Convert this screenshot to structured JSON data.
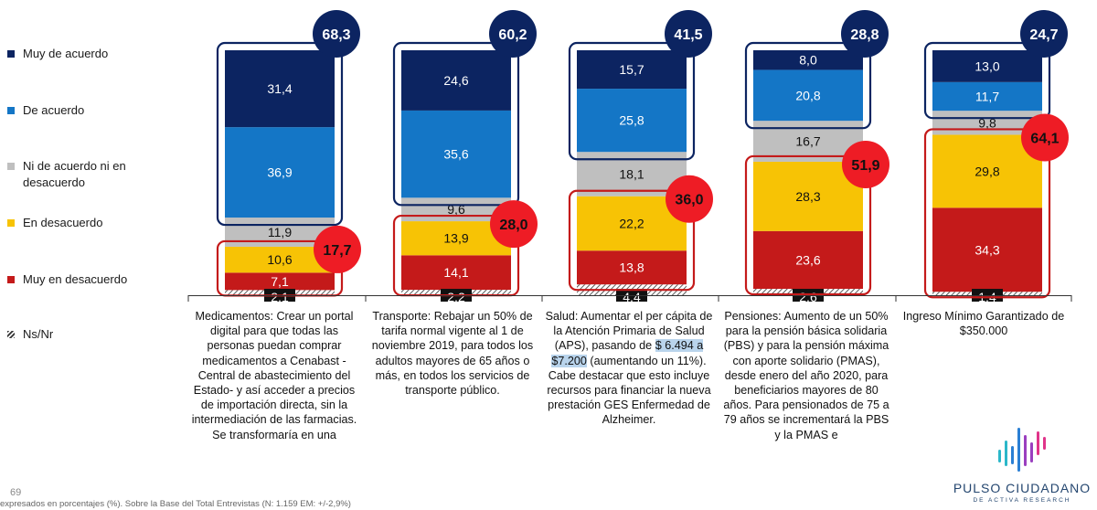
{
  "legend": [
    {
      "label": "Muy de acuerdo",
      "color": "#0c2461"
    },
    {
      "label": "De acuerdo",
      "color": "#1476c6"
    },
    {
      "label": "Ni de acuerdo ni en desacuerdo",
      "color": "#bfbfbf"
    },
    {
      "label": "En desacuerdo",
      "color": "#f7c305"
    },
    {
      "label": "Muy en desacuerdo",
      "color": "#c41a1a"
    },
    {
      "label": "Ns/Nr",
      "color": "hatched"
    }
  ],
  "chart_data": {
    "type": "bar",
    "stacked": true,
    "categories": [
      "Medicamentos",
      "Transporte",
      "Salud",
      "Pensiones",
      "Ingreso Mínimo Garantizado de $350.000"
    ],
    "series": [
      {
        "name": "Muy de acuerdo",
        "color": "#0c2461",
        "values": [
          31.4,
          24.6,
          15.7,
          8.0,
          13.0
        ],
        "labels": [
          "31,4",
          "24,6",
          "15,7",
          "8,0",
          "13,0"
        ]
      },
      {
        "name": "De acuerdo",
        "color": "#1476c6",
        "values": [
          36.9,
          35.6,
          25.8,
          20.8,
          11.7
        ],
        "labels": [
          "36,9",
          "35,6",
          "25,8",
          "20,8",
          "11,7"
        ]
      },
      {
        "name": "Ni de acuerdo ni en desacuerdo",
        "color": "#bfbfbf",
        "values": [
          11.9,
          9.6,
          18.1,
          16.7,
          9.8
        ],
        "labels": [
          "11,9",
          "9,6",
          "18,1",
          "16,7",
          "9,8"
        ]
      },
      {
        "name": "En desacuerdo",
        "color": "#f7c305",
        "values": [
          10.6,
          13.9,
          22.2,
          28.3,
          29.8
        ],
        "labels": [
          "10,6",
          "13,9",
          "22,2",
          "28,3",
          "29,8"
        ]
      },
      {
        "name": "Muy en desacuerdo",
        "color": "#c41a1a",
        "values": [
          7.1,
          14.1,
          13.8,
          23.6,
          34.3
        ],
        "labels": [
          "7,1",
          "14,1",
          "13,8",
          "23,6",
          "34,3"
        ]
      },
      {
        "name": "Ns/Nr",
        "color": "hatched",
        "values": [
          2.1,
          2.2,
          4.4,
          2.6,
          1.4
        ],
        "labels": [
          "2,1",
          "2,2",
          "4,4",
          "2,6",
          "1,4"
        ]
      }
    ],
    "agree_totals": [
      68.3,
      60.2,
      41.5,
      28.8,
      24.7
    ],
    "agree_labels": [
      "68,3",
      "60,2",
      "41,5",
      "28,8",
      "24,7"
    ],
    "disagree_totals": [
      17.7,
      28.0,
      36.0,
      51.9,
      64.1
    ],
    "disagree_labels": [
      "17,7",
      "28,0",
      "36,0",
      "51,9",
      "64,1"
    ],
    "ylim": [
      0,
      100
    ],
    "legend_position": "left"
  },
  "descriptions": [
    {
      "parts": [
        {
          "text": "Medicamentos: Crear un portal digital para que todas las personas puedan comprar medicamentos a Cenabast - Central de abastecimiento del Estado- y así acceder a precios de importación directa, sin la intermediación de las farmacias. Se transformaría en una"
        }
      ]
    },
    {
      "parts": [
        {
          "text": "Transporte: Rebajar un 50% de tarifa normal vigente al 1 de noviembre 2019, para todos los adultos mayores de 65 años o más, en todos los servicios de transporte público."
        }
      ]
    },
    {
      "parts": [
        {
          "text": "Salud: Aumentar el per cápita de la Atención Primaria de Salud (APS), pasando de "
        },
        {
          "text": "$ 6.494 a $7.200",
          "highlight": true
        },
        {
          "text": " (aumentando un 11%). Cabe destacar que esto incluye recursos para financiar la nueva prestación GES Enfermedad de Alzheimer."
        }
      ]
    },
    {
      "parts": [
        {
          "text": "Pensiones: Aumento de un 50% para la pensión básica solidaria (PBS) y para la pensión máxima con aporte solidario (PMAS), desde enero del año 2020, para beneficiarios mayores de 80 años.  Para pensionados de 75 a 79 años se incrementará la PBS y la PMAS e"
        }
      ]
    },
    {
      "parts": [
        {
          "text": "Ingreso Mínimo Garantizado de $350.000"
        }
      ]
    }
  ],
  "page_number": "69",
  "footnote": "expresados en porcentajes (%). Sobre la Base del Total Entrevistas (N: 1.159 EM: +/-2,9%)",
  "logo": {
    "name": "PULSO CIUDADANO",
    "subtitle": "DE ACTIVA RESEARCH",
    "colors": [
      "#2bb7c9",
      "#2a7fd4",
      "#9a3fbf",
      "#e0348a"
    ]
  }
}
